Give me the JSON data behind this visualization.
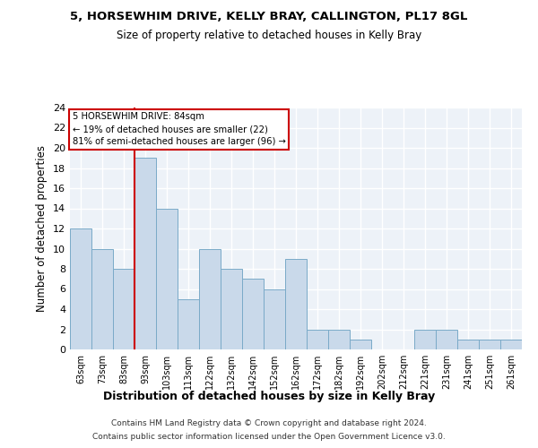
{
  "title1": "5, HORSEWHIM DRIVE, KELLY BRAY, CALLINGTON, PL17 8GL",
  "title2": "Size of property relative to detached houses in Kelly Bray",
  "xlabel": "Distribution of detached houses by size in Kelly Bray",
  "ylabel": "Number of detached properties",
  "categories": [
    "63sqm",
    "73sqm",
    "83sqm",
    "93sqm",
    "103sqm",
    "113sqm",
    "122sqm",
    "132sqm",
    "142sqm",
    "152sqm",
    "162sqm",
    "172sqm",
    "182sqm",
    "192sqm",
    "202sqm",
    "212sqm",
    "221sqm",
    "231sqm",
    "241sqm",
    "251sqm",
    "261sqm"
  ],
  "values": [
    12,
    10,
    8,
    19,
    14,
    5,
    10,
    8,
    7,
    6,
    9,
    2,
    2,
    1,
    0,
    0,
    2,
    2,
    1,
    1,
    1
  ],
  "bar_color": "#c9d9ea",
  "bar_edge_color": "#7aaac8",
  "annotation_line1": "5 HORSEWHIM DRIVE: 84sqm",
  "annotation_line2": "← 19% of detached houses are smaller (22)",
  "annotation_line3": "81% of semi-detached houses are larger (96) →",
  "annotation_box_color": "#cc0000",
  "vline_color": "#cc0000",
  "vline_index": 2.5,
  "ylim": [
    0,
    24
  ],
  "yticks": [
    0,
    2,
    4,
    6,
    8,
    10,
    12,
    14,
    16,
    18,
    20,
    22,
    24
  ],
  "footer1": "Contains HM Land Registry data © Crown copyright and database right 2024.",
  "footer2": "Contains public sector information licensed under the Open Government Licence v3.0.",
  "background_color": "#ffffff",
  "plot_bg_color": "#edf2f8"
}
